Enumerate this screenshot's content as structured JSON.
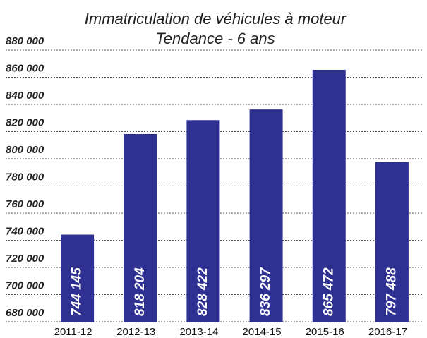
{
  "chart_data": {
    "type": "bar",
    "title": "Immatriculation de véhicules à moteur",
    "subtitle": "Tendance - 6 ans",
    "categories": [
      "2011-12",
      "2012-13",
      "2013-14",
      "2014-15",
      "2015-16",
      "2016-17"
    ],
    "values": [
      744145,
      818204,
      828422,
      836297,
      865472,
      797488
    ],
    "value_labels": [
      "744 145",
      "818 204",
      "828 422",
      "836 297",
      "865 472",
      "797 488"
    ],
    "color": "#2e3192",
    "ylim": [
      680000,
      880000
    ],
    "yticks": [
      {
        "value": 680000,
        "label": "680 000"
      },
      {
        "value": 700000,
        "label": "700 000"
      },
      {
        "value": 720000,
        "label": "720 000"
      },
      {
        "value": 740000,
        "label": "740 000"
      },
      {
        "value": 760000,
        "label": "760 000"
      },
      {
        "value": 780000,
        "label": "780 000"
      },
      {
        "value": 800000,
        "label": "800 000"
      },
      {
        "value": 820000,
        "label": "820 000"
      },
      {
        "value": 840000,
        "label": "840 000"
      },
      {
        "value": 860000,
        "label": "860 000"
      },
      {
        "value": 880000,
        "label": "880 000"
      }
    ],
    "grid": true
  }
}
